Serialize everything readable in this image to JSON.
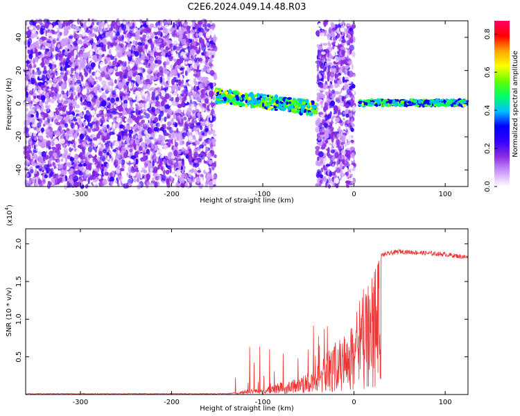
{
  "title": "C2E6.2024.049.14.48.R03",
  "chart_data": [
    {
      "type": "heatmap",
      "xlabel": "Height of straight line (km)",
      "ylabel": "Frequency (Hz)",
      "xlim": [
        -360,
        125
      ],
      "ylim": [
        -50,
        50
      ],
      "xticks": [
        -300,
        -200,
        -100,
        0,
        100
      ],
      "yticks": [
        -40,
        -20,
        0,
        20,
        40
      ],
      "colorbar": {
        "label": "Normalized spectral amplitude",
        "range": [
          0,
          0.87
        ],
        "ticks": [
          0.0,
          0.2,
          0.4,
          0.6,
          0.8
        ],
        "colors": [
          "#ffffff",
          "#cc99ff",
          "#8a2be2",
          "#3300ff",
          "#0000ff",
          "#00bfff",
          "#00ff66",
          "#66ff00",
          "#ffff00",
          "#ffa500",
          "#ff0000",
          "#ff0066"
        ]
      },
      "regions": [
        {
          "name": "noise",
          "x": [
            -360,
            -152
          ],
          "freq": [
            -50,
            50
          ],
          "amplitude": 0.12
        },
        {
          "name": "signal-band",
          "x": [
            -152,
            -40
          ],
          "center_freq": [
            5,
            -3
          ],
          "width_hz": 8,
          "amplitude": 0.35
        },
        {
          "name": "noise",
          "x": [
            -40,
            0
          ],
          "freq": [
            -50,
            50
          ],
          "amplitude": 0.12
        },
        {
          "name": "signal-band",
          "x": [
            5,
            125
          ],
          "center_freq": [
            0.5,
            0.5
          ],
          "width_hz": 3,
          "amplitude": 0.3
        }
      ]
    },
    {
      "type": "line",
      "xlabel": "Height of straight line (km)",
      "ylabel": "SNR (10 * v/v)",
      "y_multiplier": "(x10",
      "y_multiplier_exp": "4",
      "y_multiplier_close": ")",
      "xlim": [
        -360,
        125
      ],
      "ylim": [
        0,
        2.2
      ],
      "xticks": [
        -300,
        -200,
        -100,
        0,
        100
      ],
      "yticks": [
        0.5,
        1.0,
        1.5,
        2.0
      ],
      "line_color": "#ee3333",
      "series": [
        {
          "x": [
            -360,
            -300,
            -200,
            -140,
            -130,
            -120,
            -100,
            -80,
            -60,
            -40,
            -30,
            -20,
            -10,
            -5,
            0,
            5,
            10,
            20,
            30,
            50,
            75,
            100,
            125
          ],
          "y": [
            0.01,
            0.01,
            0.01,
            0.01,
            0.02,
            0.06,
            0.1,
            0.16,
            0.22,
            0.38,
            0.55,
            0.7,
            0.8,
            0.9,
            1.0,
            1.2,
            1.4,
            1.7,
            1.85,
            1.9,
            1.88,
            1.86,
            1.82
          ]
        }
      ]
    }
  ]
}
